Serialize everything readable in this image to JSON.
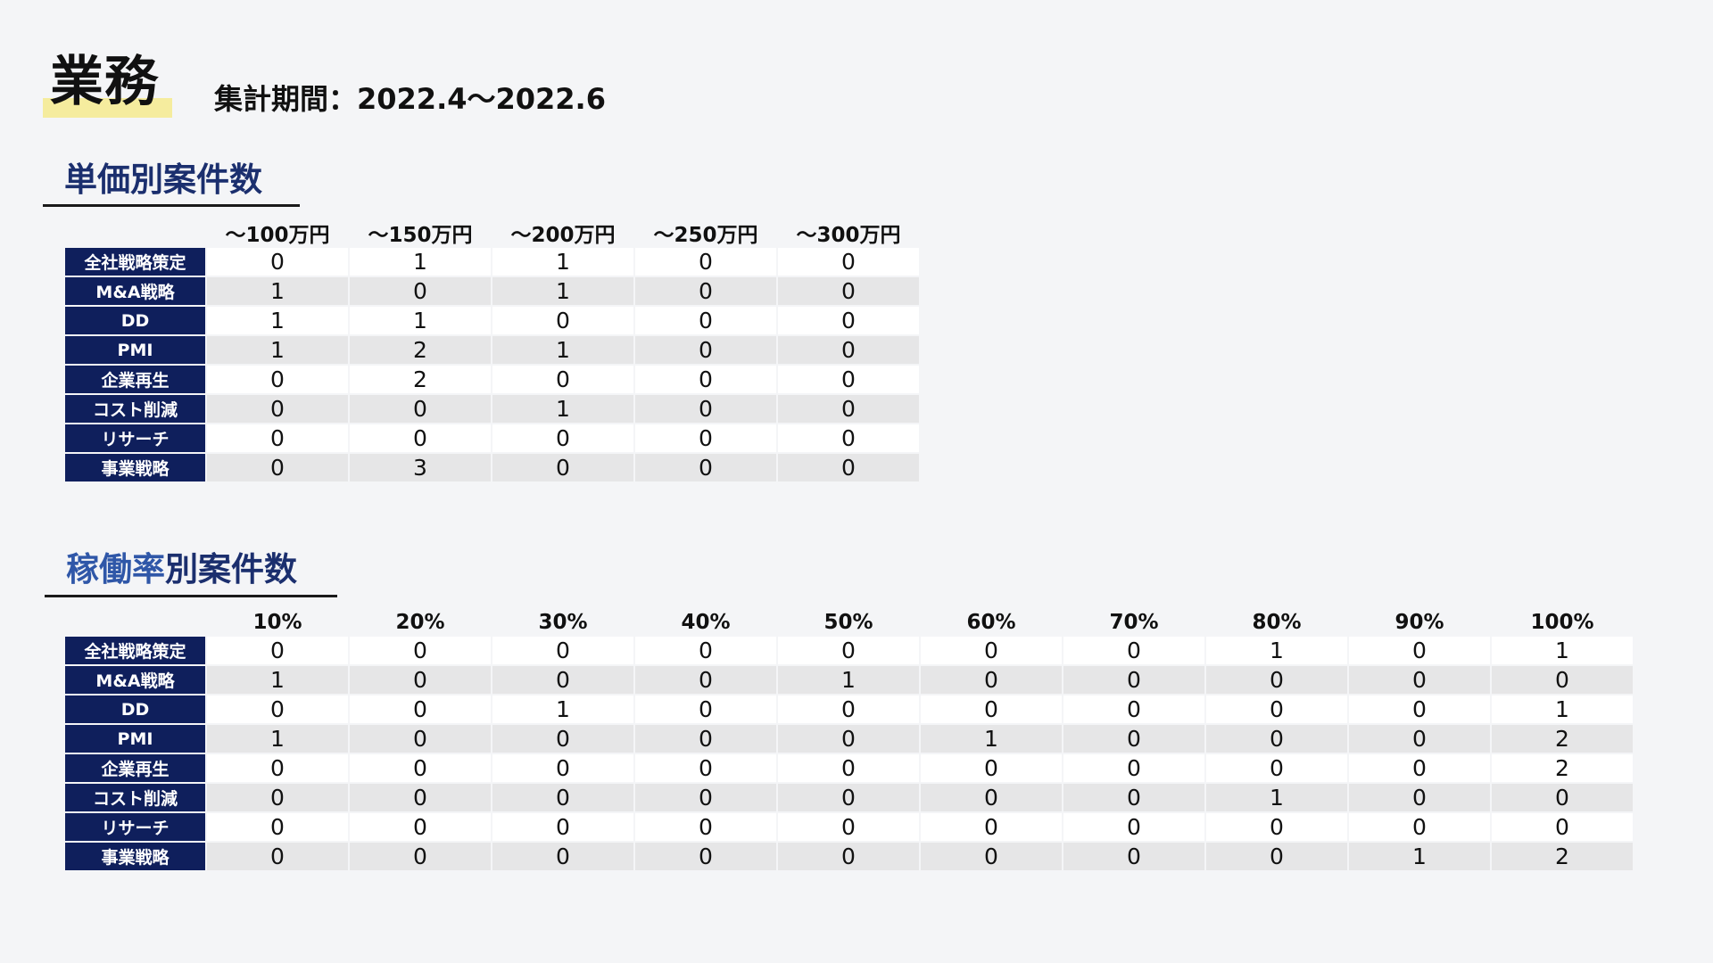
{
  "header": {
    "title": "業務",
    "period": "集計期間：2022.4〜2022.6"
  },
  "price_section": {
    "title": "単価別案件数",
    "columns": [
      "〜100万円",
      "〜150万円",
      "〜200万円",
      "〜250万円",
      "〜300万円"
    ],
    "rows": [
      {
        "label": "全社戦略策定",
        "values": [
          "0",
          "1",
          "1",
          "0",
          "0"
        ]
      },
      {
        "label": "M&A戦略",
        "values": [
          "1",
          "0",
          "1",
          "0",
          "0"
        ]
      },
      {
        "label": "DD",
        "values": [
          "1",
          "1",
          "0",
          "0",
          "0"
        ]
      },
      {
        "label": "PMI",
        "values": [
          "1",
          "2",
          "1",
          "0",
          "0"
        ]
      },
      {
        "label": "企業再生",
        "values": [
          "0",
          "2",
          "0",
          "0",
          "0"
        ]
      },
      {
        "label": "コスト削減",
        "values": [
          "0",
          "0",
          "1",
          "0",
          "0"
        ]
      },
      {
        "label": "リサーチ",
        "values": [
          "0",
          "0",
          "0",
          "0",
          "0"
        ]
      },
      {
        "label": "事業戦略",
        "values": [
          "0",
          "3",
          "0",
          "0",
          "0"
        ]
      }
    ]
  },
  "utilization_section": {
    "title_accent": "稼働率",
    "title_rest": "別案件数",
    "columns": [
      "10%",
      "20%",
      "30%",
      "40%",
      "50%",
      "60%",
      "70%",
      "80%",
      "90%",
      "100%"
    ],
    "rows": [
      {
        "label": "全社戦略策定",
        "values": [
          "0",
          "0",
          "0",
          "0",
          "0",
          "0",
          "0",
          "1",
          "0",
          "1"
        ]
      },
      {
        "label": "M&A戦略",
        "values": [
          "1",
          "0",
          "0",
          "0",
          "1",
          "0",
          "0",
          "0",
          "0",
          "0"
        ]
      },
      {
        "label": "DD",
        "values": [
          "0",
          "0",
          "1",
          "0",
          "0",
          "0",
          "0",
          "0",
          "0",
          "1"
        ]
      },
      {
        "label": "PMI",
        "values": [
          "1",
          "0",
          "0",
          "0",
          "0",
          "1",
          "0",
          "0",
          "0",
          "2"
        ]
      },
      {
        "label": "企業再生",
        "values": [
          "0",
          "0",
          "0",
          "0",
          "0",
          "0",
          "0",
          "0",
          "0",
          "2"
        ]
      },
      {
        "label": "コスト削減",
        "values": [
          "0",
          "0",
          "0",
          "0",
          "0",
          "0",
          "0",
          "1",
          "0",
          "0"
        ]
      },
      {
        "label": "リサーチ",
        "values": [
          "0",
          "0",
          "0",
          "0",
          "0",
          "0",
          "0",
          "0",
          "0",
          "0"
        ]
      },
      {
        "label": "事業戦略",
        "values": [
          "0",
          "0",
          "0",
          "0",
          "0",
          "0",
          "0",
          "0",
          "1",
          "2"
        ]
      }
    ]
  }
}
